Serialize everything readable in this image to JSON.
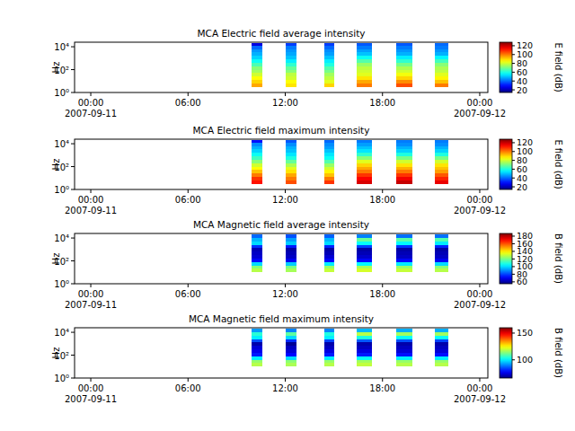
{
  "chart_data": [
    {
      "type": "heatmap",
      "title": "MCA  Electric field average intensity",
      "y_label": "Hz",
      "colorbar_label": "E field (dB)",
      "log": "y",
      "xlim": [
        "2007-09-10T23:00",
        "2007-09-12T00:30"
      ],
      "xticks": [
        {
          "value": "2007-09-11T00:00",
          "label": "00:00\n2007-09-11"
        },
        {
          "value": "2007-09-11T06:00",
          "label": "06:00"
        },
        {
          "value": "2007-09-11T12:00",
          "label": "12:00"
        },
        {
          "value": "2007-09-11T18:00",
          "label": "18:00"
        },
        {
          "value": "2007-09-12T00:00",
          "label": "00:00\n2007-09-12"
        }
      ],
      "ylim": [
        1,
        25000
      ],
      "yticks": [
        {
          "value": 1,
          "label": "10⁰"
        },
        {
          "value": 100,
          "label": "10²"
        },
        {
          "value": 10000,
          "label": "10⁴"
        }
      ],
      "y_edges": [
        3,
        6,
        12,
        25,
        50,
        100,
        200,
        400,
        800,
        1600,
        3200,
        6400,
        12800,
        20000
      ],
      "color_range": [
        14,
        128
      ],
      "color_ticks": [
        20,
        40,
        60,
        80,
        100,
        120
      ],
      "segments": [
        {
          "start": "2007-09-11T09:56",
          "end": "2007-09-11T10:34",
          "values": [
            95,
            90,
            85,
            80,
            75,
            72,
            65,
            58,
            52,
            48,
            45,
            40,
            25
          ]
        },
        {
          "start": "2007-09-11T12:00",
          "end": "2007-09-11T12:43",
          "values": [
            88,
            85,
            80,
            78,
            72,
            68,
            62,
            55,
            50,
            47,
            45,
            42,
            35
          ]
        },
        {
          "start": "2007-09-11T14:23",
          "end": "2007-09-11T15:00",
          "values": [
            90,
            82,
            78,
            75,
            70,
            66,
            60,
            55,
            50,
            46,
            44,
            40,
            35
          ]
        },
        {
          "start": "2007-09-11T16:23",
          "end": "2007-09-11T17:20",
          "values": [
            100,
            95,
            88,
            82,
            80,
            78,
            74,
            66,
            58,
            50,
            46,
            42,
            38
          ]
        },
        {
          "start": "2007-09-11T18:50",
          "end": "2007-09-11T19:50",
          "values": [
            105,
            98,
            90,
            84,
            80,
            76,
            70,
            62,
            55,
            48,
            45,
            42,
            38
          ]
        },
        {
          "start": "2007-09-11T21:13",
          "end": "2007-09-11T22:04",
          "values": [
            100,
            92,
            86,
            82,
            78,
            76,
            72,
            64,
            56,
            48,
            45,
            42,
            40
          ]
        }
      ]
    },
    {
      "type": "heatmap",
      "title": "MCA  Electric field maximum intensity",
      "y_label": "Hz",
      "colorbar_label": "E field (dB)",
      "log": "y",
      "xlim": [
        "2007-09-10T23:00",
        "2007-09-12T00:30"
      ],
      "xticks": [
        {
          "value": "2007-09-11T00:00",
          "label": "00:00\n2007-09-11"
        },
        {
          "value": "2007-09-11T06:00",
          "label": "06:00"
        },
        {
          "value": "2007-09-11T12:00",
          "label": "12:00"
        },
        {
          "value": "2007-09-11T18:00",
          "label": "18:00"
        },
        {
          "value": "2007-09-12T00:00",
          "label": "00:00\n2007-09-12"
        }
      ],
      "ylim": [
        1,
        25000
      ],
      "yticks": [
        {
          "value": 1,
          "label": "10⁰"
        },
        {
          "value": 100,
          "label": "10²"
        },
        {
          "value": 10000,
          "label": "10⁴"
        }
      ],
      "y_edges": [
        3,
        6,
        12,
        25,
        50,
        100,
        200,
        400,
        800,
        1600,
        3200,
        6400,
        12800,
        20000
      ],
      "color_range": [
        14,
        128
      ],
      "color_ticks": [
        20,
        40,
        60,
        80,
        100,
        120
      ],
      "segments": [
        {
          "start": "2007-09-11T09:56",
          "end": "2007-09-11T10:34",
          "values": [
            112,
            108,
            100,
            92,
            85,
            80,
            72,
            64,
            58,
            52,
            48,
            44,
            30
          ]
        },
        {
          "start": "2007-09-11T12:00",
          "end": "2007-09-11T12:43",
          "values": [
            105,
            100,
            95,
            88,
            82,
            76,
            68,
            60,
            54,
            50,
            48,
            44,
            38
          ]
        },
        {
          "start": "2007-09-11T14:23",
          "end": "2007-09-11T15:00",
          "values": [
            108,
            100,
            92,
            86,
            80,
            74,
            66,
            58,
            54,
            50,
            46,
            44,
            40
          ]
        },
        {
          "start": "2007-09-11T16:23",
          "end": "2007-09-11T17:20",
          "values": [
            118,
            114,
            108,
            100,
            95,
            90,
            82,
            72,
            62,
            54,
            50,
            46,
            42
          ]
        },
        {
          "start": "2007-09-11T18:50",
          "end": "2007-09-11T19:50",
          "values": [
            120,
            115,
            108,
            100,
            94,
            88,
            80,
            70,
            60,
            52,
            48,
            44,
            42
          ]
        },
        {
          "start": "2007-09-11T21:13",
          "end": "2007-09-11T22:04",
          "values": [
            116,
            110,
            104,
            96,
            92,
            88,
            80,
            70,
            60,
            52,
            48,
            44,
            42
          ]
        }
      ]
    },
    {
      "type": "heatmap",
      "title": "MCA  Magnetic field average intensity",
      "y_label": "Hz",
      "colorbar_label": "B field (dB)",
      "log": "y",
      "xlim": [
        "2007-09-10T23:00",
        "2007-09-12T00:30"
      ],
      "xticks": [
        {
          "value": "2007-09-11T00:00",
          "label": "00:00\n2007-09-11"
        },
        {
          "value": "2007-09-11T06:00",
          "label": "06:00"
        },
        {
          "value": "2007-09-11T12:00",
          "label": "12:00"
        },
        {
          "value": "2007-09-11T18:00",
          "label": "18:00"
        },
        {
          "value": "2007-09-12T00:00",
          "label": "00:00\n2007-09-12"
        }
      ],
      "ylim": [
        1,
        25000
      ],
      "yticks": [
        {
          "value": 1,
          "label": "10⁰"
        },
        {
          "value": 100,
          "label": "10²"
        },
        {
          "value": 10000,
          "label": "10⁴"
        }
      ],
      "y_edges": [
        10,
        20,
        40,
        80,
        160,
        320,
        640,
        1280,
        2560,
        5120,
        10240,
        20000
      ],
      "color_range": [
        55,
        187
      ],
      "color_ticks": [
        60,
        80,
        100,
        120,
        140,
        160,
        180
      ],
      "segments": [
        {
          "start": "2007-09-11T09:56",
          "end": "2007-09-11T10:34",
          "values": [
            128,
            122,
            100,
            72,
            66,
            64,
            62,
            78,
            100,
            95,
            85
          ]
        },
        {
          "start": "2007-09-11T12:00",
          "end": "2007-09-11T12:43",
          "values": [
            126,
            120,
            98,
            70,
            64,
            62,
            60,
            75,
            98,
            92,
            82
          ]
        },
        {
          "start": "2007-09-11T14:23",
          "end": "2007-09-11T15:00",
          "values": [
            130,
            124,
            102,
            72,
            66,
            62,
            60,
            76,
            100,
            95,
            84
          ]
        },
        {
          "start": "2007-09-11T16:23",
          "end": "2007-09-11T17:20",
          "values": [
            132,
            126,
            104,
            72,
            65,
            62,
            60,
            80,
            105,
            118,
            88
          ]
        },
        {
          "start": "2007-09-11T18:50",
          "end": "2007-09-11T19:50",
          "values": [
            130,
            124,
            102,
            72,
            64,
            62,
            60,
            78,
            104,
            116,
            86
          ]
        },
        {
          "start": "2007-09-11T21:13",
          "end": "2007-09-11T22:04",
          "values": [
            128,
            122,
            100,
            70,
            64,
            62,
            60,
            76,
            102,
            115,
            86
          ]
        }
      ]
    },
    {
      "type": "heatmap",
      "title": "MCA  Magnetic field maximum intensity",
      "y_label": "Hz",
      "colorbar_label": "B field (dB)",
      "log": "y",
      "xlim": [
        "2007-09-10T23:00",
        "2007-09-12T00:30"
      ],
      "xticks": [
        {
          "value": "2007-09-11T00:00",
          "label": "00:00\n2007-09-11"
        },
        {
          "value": "2007-09-11T06:00",
          "label": "06:00"
        },
        {
          "value": "2007-09-11T12:00",
          "label": "12:00"
        },
        {
          "value": "2007-09-11T18:00",
          "label": "18:00"
        },
        {
          "value": "2007-09-12T00:00",
          "label": "00:00\n2007-09-12"
        }
      ],
      "ylim": [
        1,
        25000
      ],
      "yticks": [
        {
          "value": 1,
          "label": "10⁰"
        },
        {
          "value": 100,
          "label": "10²"
        },
        {
          "value": 10000,
          "label": "10⁴"
        }
      ],
      "y_edges": [
        10,
        20,
        40,
        80,
        160,
        320,
        640,
        1280,
        2560,
        5120,
        10240,
        20000
      ],
      "color_range": [
        66,
        160
      ],
      "color_ticks": [
        100,
        150
      ],
      "segments": [
        {
          "start": "2007-09-11T09:56",
          "end": "2007-09-11T10:34",
          "values": [
            118,
            115,
            100,
            80,
            76,
            74,
            70,
            85,
            100,
            105,
            92
          ]
        },
        {
          "start": "2007-09-11T12:00",
          "end": "2007-09-11T12:43",
          "values": [
            117,
            114,
            98,
            78,
            74,
            72,
            68,
            82,
            98,
            110,
            90
          ]
        },
        {
          "start": "2007-09-11T14:23",
          "end": "2007-09-11T15:00",
          "values": [
            118,
            115,
            100,
            80,
            75,
            72,
            70,
            84,
            100,
            104,
            90
          ]
        },
        {
          "start": "2007-09-11T16:23",
          "end": "2007-09-11T17:20",
          "values": [
            119,
            116,
            102,
            80,
            75,
            72,
            70,
            86,
            104,
            118,
            95
          ]
        },
        {
          "start": "2007-09-11T18:50",
          "end": "2007-09-11T19:50",
          "values": [
            118,
            115,
            100,
            79,
            74,
            72,
            70,
            85,
            102,
            116,
            94
          ]
        },
        {
          "start": "2007-09-11T21:13",
          "end": "2007-09-11T22:04",
          "values": [
            118,
            115,
            100,
            79,
            74,
            72,
            70,
            84,
            102,
            116,
            94
          ]
        }
      ]
    }
  ]
}
